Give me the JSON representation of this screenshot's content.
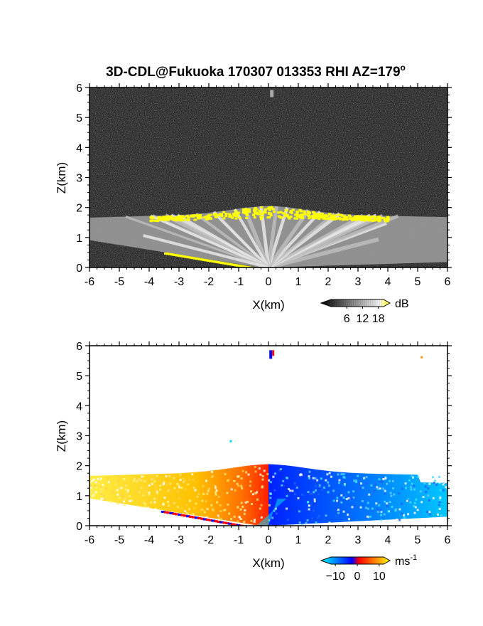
{
  "title": "3D-CDL@Fukuoka 170307 013353 RHI AZ=179",
  "title_superscript": "o",
  "chart_data": [
    {
      "type": "heatmap",
      "variable": "backscatter intensity",
      "x_range": [
        -6,
        6
      ],
      "y_range": [
        0,
        6
      ],
      "xlabel": "X(km)",
      "ylabel": "Z(km)",
      "x_ticks": [
        "-6",
        "-5",
        "-4",
        "-3",
        "-2",
        "-1",
        "0",
        "1",
        "2",
        "3",
        "4",
        "5",
        "6"
      ],
      "y_ticks": [
        "0",
        "1",
        "2",
        "3",
        "4",
        "5",
        "6"
      ],
      "colorbar": {
        "unit": "dB",
        "ticks": [
          "6",
          "12",
          "18"
        ],
        "range": [
          0,
          20
        ],
        "colors": [
          "#000000",
          "#ffffff",
          "#ffff00"
        ]
      },
      "features": {
        "boundary_layer_top_km": 1.8,
        "high_intensity_band_km": [
          1.5,
          2.0
        ],
        "low_level_yellow_streak": {
          "x": [
            -3.5,
            -0.5
          ],
          "z": [
            0.5,
            0.0
          ]
        },
        "spot_at_top": {
          "x": 0.1,
          "z": 5.8
        }
      }
    },
    {
      "type": "heatmap",
      "variable": "Doppler velocity",
      "x_range": [
        -6,
        6
      ],
      "y_range": [
        0,
        6
      ],
      "xlabel": "X(km)",
      "ylabel": "Z(km)",
      "x_ticks": [
        "-6",
        "-5",
        "-4",
        "-3",
        "-2",
        "-1",
        "0",
        "1",
        "2",
        "3",
        "4",
        "5",
        "6"
      ],
      "y_ticks": [
        "0",
        "1",
        "2",
        "3",
        "4",
        "5",
        "6"
      ],
      "colorbar": {
        "unit": "ms",
        "unit_superscript": "-1",
        "ticks": [
          "−10",
          "0",
          "10"
        ],
        "range": [
          -12,
          12
        ],
        "colors": [
          "#00ffff",
          "#0000ff",
          "#ff0000",
          "#ffff00"
        ]
      },
      "features": {
        "echo_top_km": 1.8,
        "negative_side_color": "#ffd000",
        "positive_side_color": "#0040ff",
        "center_boundary_x": 0.0,
        "spot_at_top": {
          "x": 0.1,
          "z": 5.7
        },
        "isolated_points": [
          {
            "x": 5.1,
            "z": 5.65
          },
          {
            "x": -1.3,
            "z": 2.85
          }
        ]
      }
    }
  ]
}
